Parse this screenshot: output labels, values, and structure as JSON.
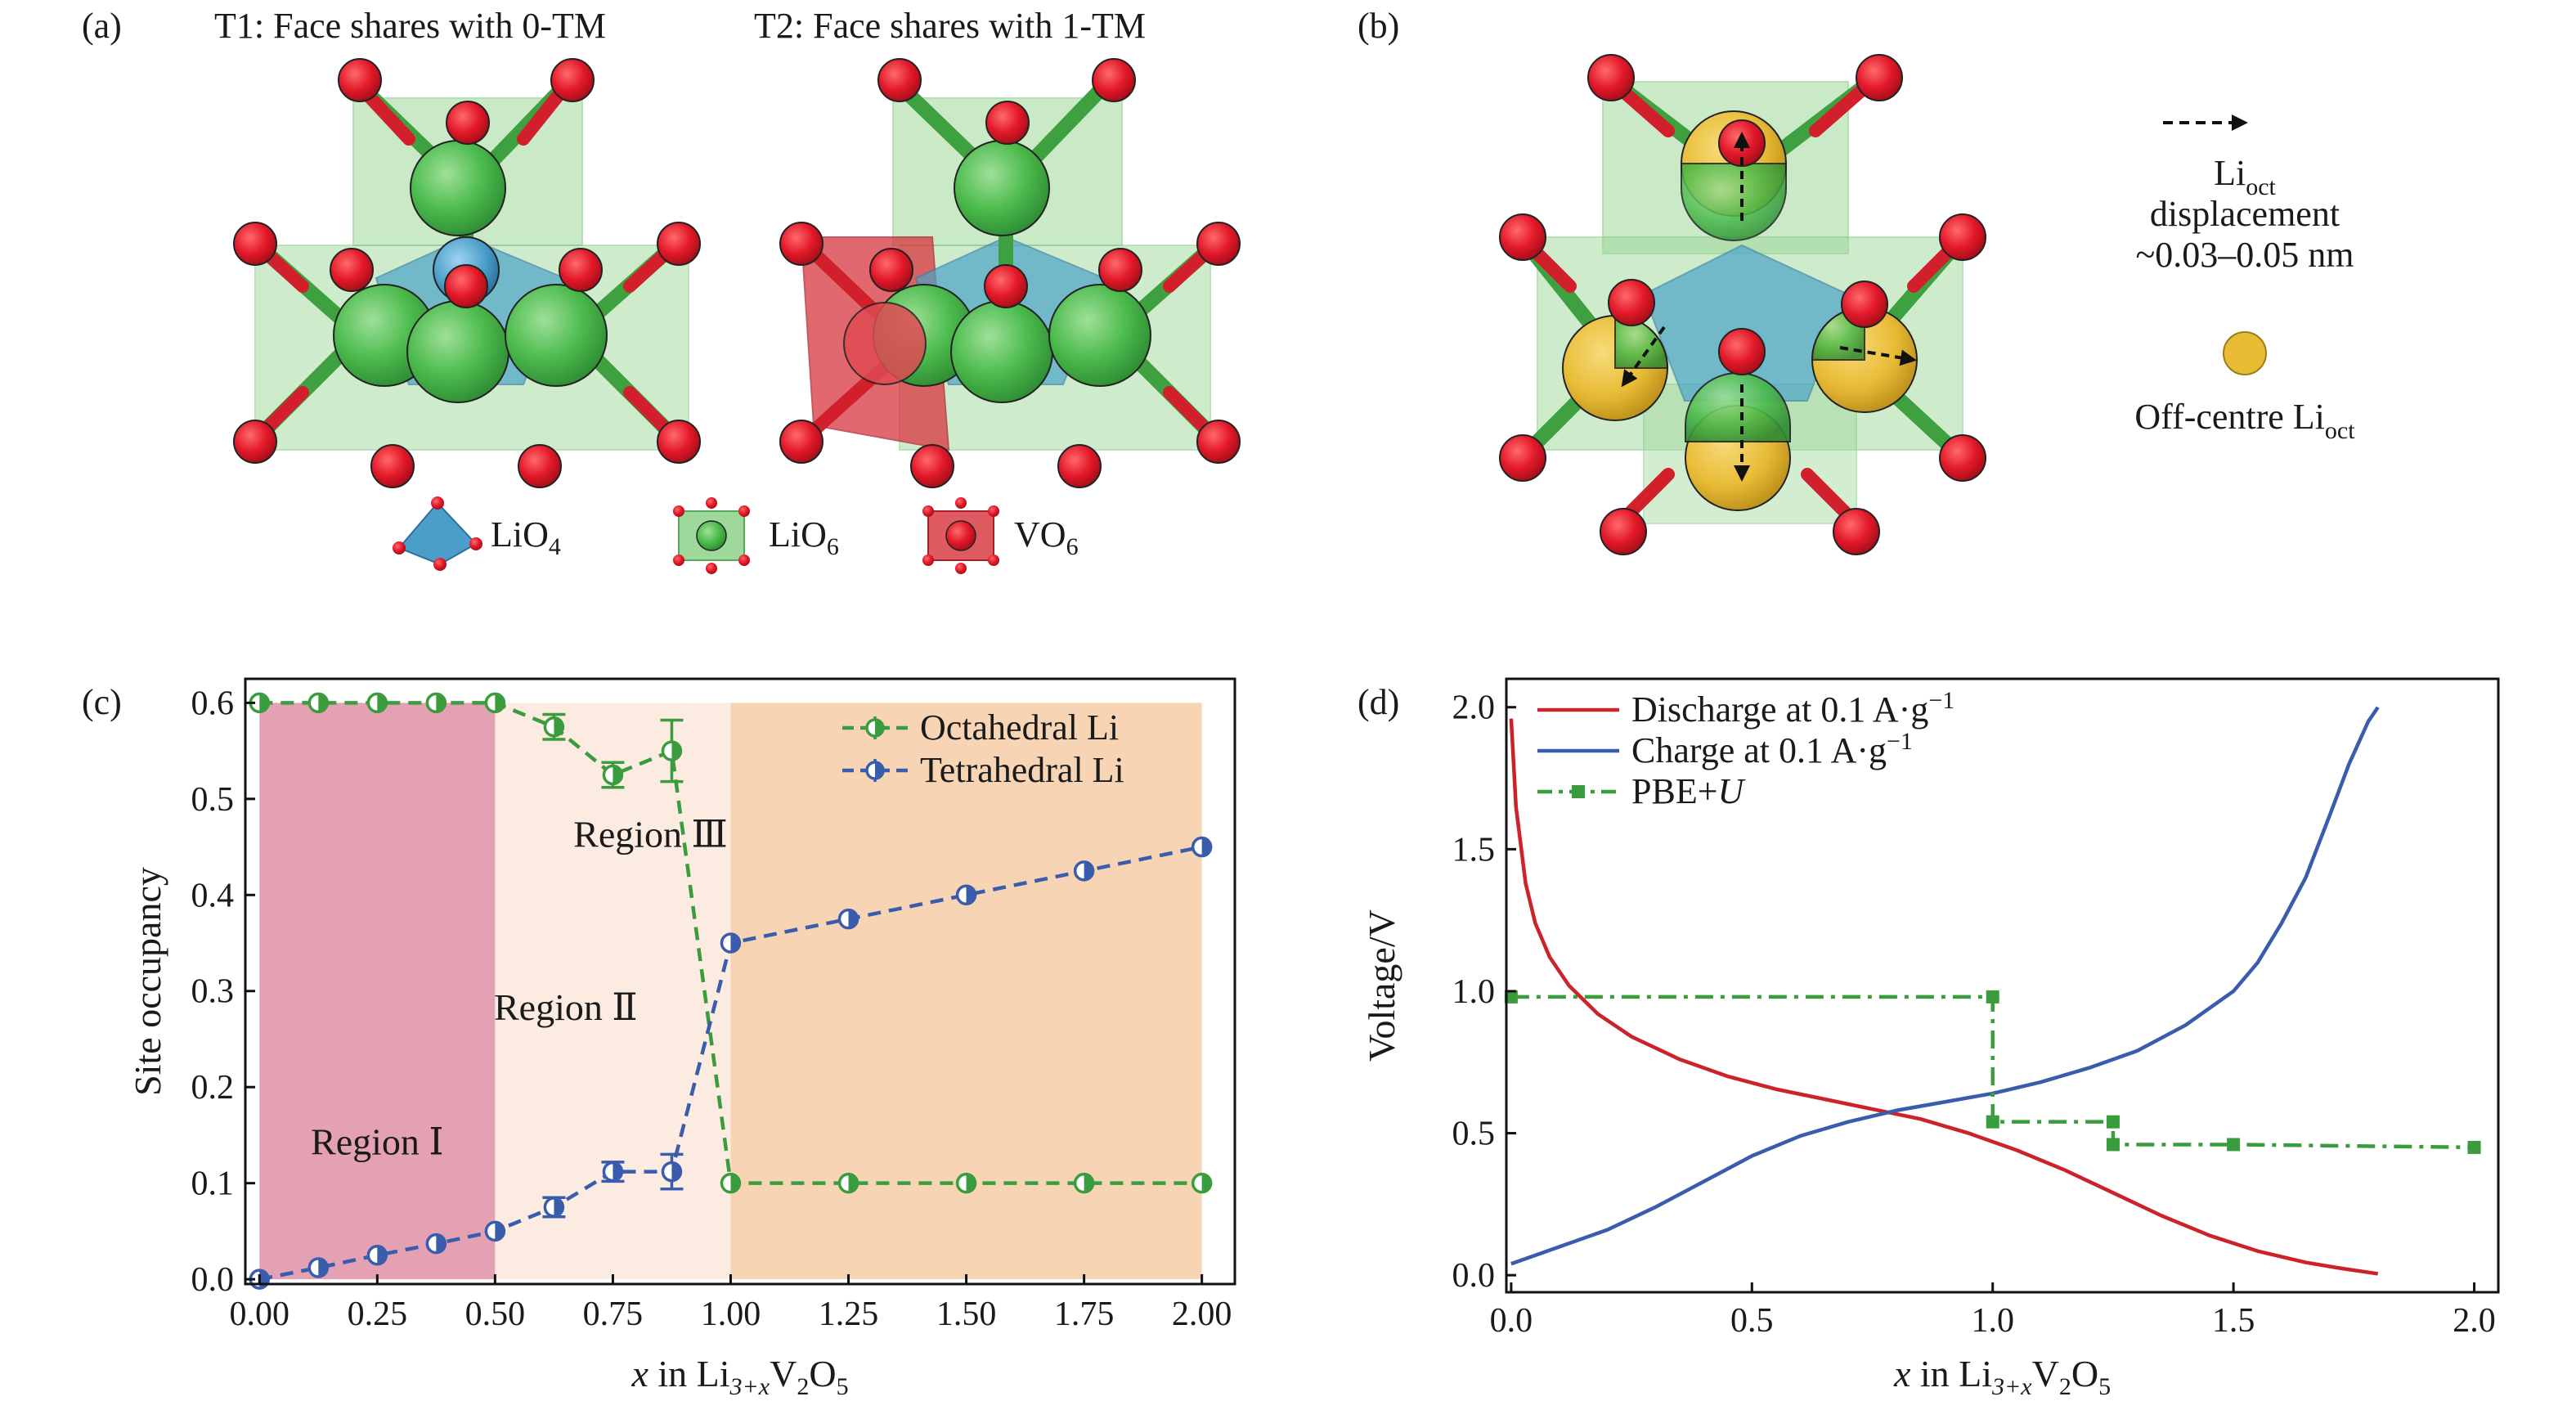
{
  "panels": {
    "a": {
      "label": "(a)",
      "t1_title": "T1: Face shares with 0-TM",
      "t2_title": "T2: Face shares with 1-TM",
      "legend": {
        "lio4": {
          "base": "LiO",
          "sub": "4"
        },
        "lio6": {
          "base": "LiO",
          "sub": "6"
        },
        "vo6": {
          "base": "VO",
          "sub": "6"
        }
      }
    },
    "b": {
      "label": "(b)",
      "displacement_line1_base": "Li",
      "displacement_line1_sub": "oct",
      "displacement_line2": "displacement",
      "displacement_line3": "~0.03–0.05 nm",
      "offcentre_base": "Off-centre Li",
      "offcentre_sub": "oct"
    },
    "c": {
      "label": "(c)"
    },
    "d": {
      "label": "(d)"
    }
  },
  "colors": {
    "region1": "#e4a1b3",
    "region2": "#fcebe0",
    "region3": "#f7d5b4",
    "green": "#3a9c3c",
    "blue": "#3a5cad",
    "red": "#cc2229",
    "pbe": "#3a9c3c",
    "oxygen": "#e3192a",
    "lithium_oct": "#4cbb4c",
    "lithium_tet": "#4a9ec9",
    "vanadium": "#d9363f",
    "offcentre": "#e8bb35"
  },
  "chart_data": [
    {
      "type": "line",
      "panel": "c",
      "ylabel": "Site occupancy",
      "xlabel_parts": {
        "x": "x",
        "mid": " in Li",
        "sub1": "3+x",
        "tail1": "V",
        "sub2": "2",
        "tail2": "O",
        "sub3": "5"
      },
      "xlim": [
        -0.03,
        2.07
      ],
      "ylim": [
        -0.005,
        0.625
      ],
      "xticks": [
        "0.00",
        "0.25",
        "0.50",
        "0.75",
        "1.00",
        "1.25",
        "1.50",
        "1.75",
        "2.00"
      ],
      "yticks": [
        "0.0",
        "0.1",
        "0.2",
        "0.3",
        "0.4",
        "0.5",
        "0.6"
      ],
      "regions": [
        {
          "label": "Region Ⅰ",
          "x": [
            0.0,
            0.5
          ]
        },
        {
          "label": "Region Ⅱ",
          "x": [
            0.5,
            1.0
          ]
        },
        {
          "label": "Region Ⅲ",
          "x": [
            1.0,
            2.0
          ]
        }
      ],
      "series": [
        {
          "name": "Octahedral Li",
          "x": [
            0.0,
            0.125,
            0.25,
            0.375,
            0.5,
            0.625,
            0.75,
            0.875,
            1.0,
            1.25,
            1.5,
            1.75,
            2.0
          ],
          "y": [
            0.6,
            0.6,
            0.6,
            0.6,
            0.6,
            0.575,
            0.525,
            0.55,
            0.1,
            0.1,
            0.1,
            0.1,
            0.1
          ],
          "err": [
            0,
            0,
            0,
            0,
            0,
            0.013,
            0.013,
            0.032,
            0,
            0,
            0,
            0,
            0
          ]
        },
        {
          "name": "Tetrahedral Li",
          "x": [
            0.0,
            0.125,
            0.25,
            0.375,
            0.5,
            0.625,
            0.75,
            0.875,
            1.0,
            1.25,
            1.5,
            1.75,
            2.0
          ],
          "y": [
            0.0,
            0.012,
            0.025,
            0.037,
            0.05,
            0.075,
            0.112,
            0.112,
            0.35,
            0.375,
            0.4,
            0.425,
            0.45
          ],
          "err": [
            0,
            0,
            0,
            0,
            0,
            0.01,
            0.01,
            0.018,
            0,
            0,
            0,
            0,
            0
          ]
        }
      ]
    },
    {
      "type": "line",
      "panel": "d",
      "ylabel": "Voltage/V",
      "xlabel_parts": {
        "x": "x",
        "mid": " in Li",
        "sub1": "3+x",
        "tail1": "V",
        "sub2": "2",
        "tail2": "O",
        "sub3": "5"
      },
      "xlim": [
        -0.01,
        2.05
      ],
      "ylim": [
        -0.06,
        2.1
      ],
      "xticks": [
        "0.0",
        "0.5",
        "1.0",
        "1.5",
        "2.0"
      ],
      "yticks": [
        "0.0",
        "0.5",
        "1.0",
        "1.5",
        "2.0"
      ],
      "series": [
        {
          "name_base": "Discharge at 0.1 A·g",
          "name_sup": "−1",
          "x": [
            0.0,
            0.01,
            0.03,
            0.05,
            0.08,
            0.12,
            0.18,
            0.25,
            0.35,
            0.45,
            0.55,
            0.65,
            0.75,
            0.85,
            0.95,
            1.05,
            1.15,
            1.25,
            1.35,
            1.45,
            1.55,
            1.65,
            1.72,
            1.8
          ],
          "y": [
            1.96,
            1.65,
            1.38,
            1.24,
            1.12,
            1.02,
            0.92,
            0.84,
            0.76,
            0.7,
            0.655,
            0.62,
            0.585,
            0.55,
            0.5,
            0.44,
            0.37,
            0.29,
            0.21,
            0.14,
            0.085,
            0.045,
            0.025,
            0.005
          ]
        },
        {
          "name_base": "Charge at 0.1 A·g",
          "name_sup": "−1",
          "x": [
            0.0,
            0.05,
            0.1,
            0.2,
            0.3,
            0.4,
            0.5,
            0.6,
            0.7,
            0.8,
            0.9,
            1.0,
            1.1,
            1.2,
            1.3,
            1.4,
            1.5,
            1.55,
            1.6,
            1.65,
            1.7,
            1.74,
            1.78,
            1.8
          ],
          "y": [
            0.04,
            0.07,
            0.1,
            0.16,
            0.24,
            0.33,
            0.42,
            0.49,
            0.54,
            0.58,
            0.61,
            0.64,
            0.68,
            0.73,
            0.79,
            0.88,
            1.0,
            1.1,
            1.24,
            1.4,
            1.62,
            1.8,
            1.95,
            2.0
          ]
        },
        {
          "name_base": "PBE+",
          "name_italic": "U",
          "x": [
            0.0,
            1.0,
            1.0,
            1.25,
            1.25,
            1.5,
            2.0
          ],
          "y": [
            0.98,
            0.98,
            0.54,
            0.54,
            0.46,
            0.46,
            0.45
          ],
          "markers_x": [
            0.0,
            1.0,
            1.0,
            1.25,
            1.25,
            1.5,
            2.0
          ],
          "markers_y": [
            0.98,
            0.98,
            0.54,
            0.54,
            0.46,
            0.46,
            0.45
          ]
        }
      ]
    }
  ]
}
